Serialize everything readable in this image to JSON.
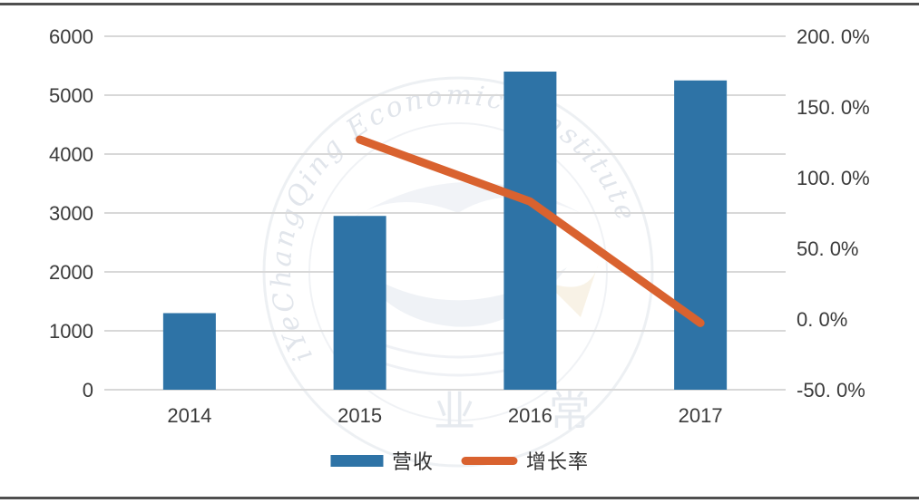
{
  "chart_data": {
    "type": "bar+line dual-axis",
    "categories": [
      "2014",
      "2015",
      "2016",
      "2017"
    ],
    "series": [
      {
        "name": "营收",
        "type": "bar",
        "axis": "left",
        "color": "#2E73A6",
        "values": [
          1300,
          2950,
          5400,
          5250
        ]
      },
      {
        "name": "增长率",
        "type": "line",
        "axis": "right",
        "color": "#D9622F",
        "values": [
          null,
          126.9,
          83.1,
          -2.8
        ]
      }
    ],
    "left_axis": {
      "min": 0,
      "max": 6000,
      "ticks": [
        "0",
        "1000",
        "2000",
        "3000",
        "4000",
        "5000",
        "6000"
      ]
    },
    "right_axis": {
      "min": -50,
      "max": 200,
      "ticks": [
        "-50. 0%",
        "0. 0%",
        "50. 0%",
        "100. 0%",
        "150. 0%",
        "200. 0%"
      ]
    },
    "grid": "horizontal",
    "legend_position": "bottom",
    "title": ""
  },
  "legend": {
    "items": [
      {
        "label": "营收",
        "swatch": "bar",
        "color": "#2E73A6"
      },
      {
        "label": "增长率",
        "swatch": "line",
        "color": "#D9622F"
      }
    ]
  },
  "watermark": {
    "arc_text": "iYeChangQing Economics Institute",
    "bottom_text": "业 常"
  },
  "colors": {
    "bar": "#2E73A6",
    "line": "#D9622F",
    "gridline": "#d8d8d8",
    "axis_text": "#3b3b3b",
    "frame_rule": "#4f4f4f",
    "background": "#ffffff"
  }
}
